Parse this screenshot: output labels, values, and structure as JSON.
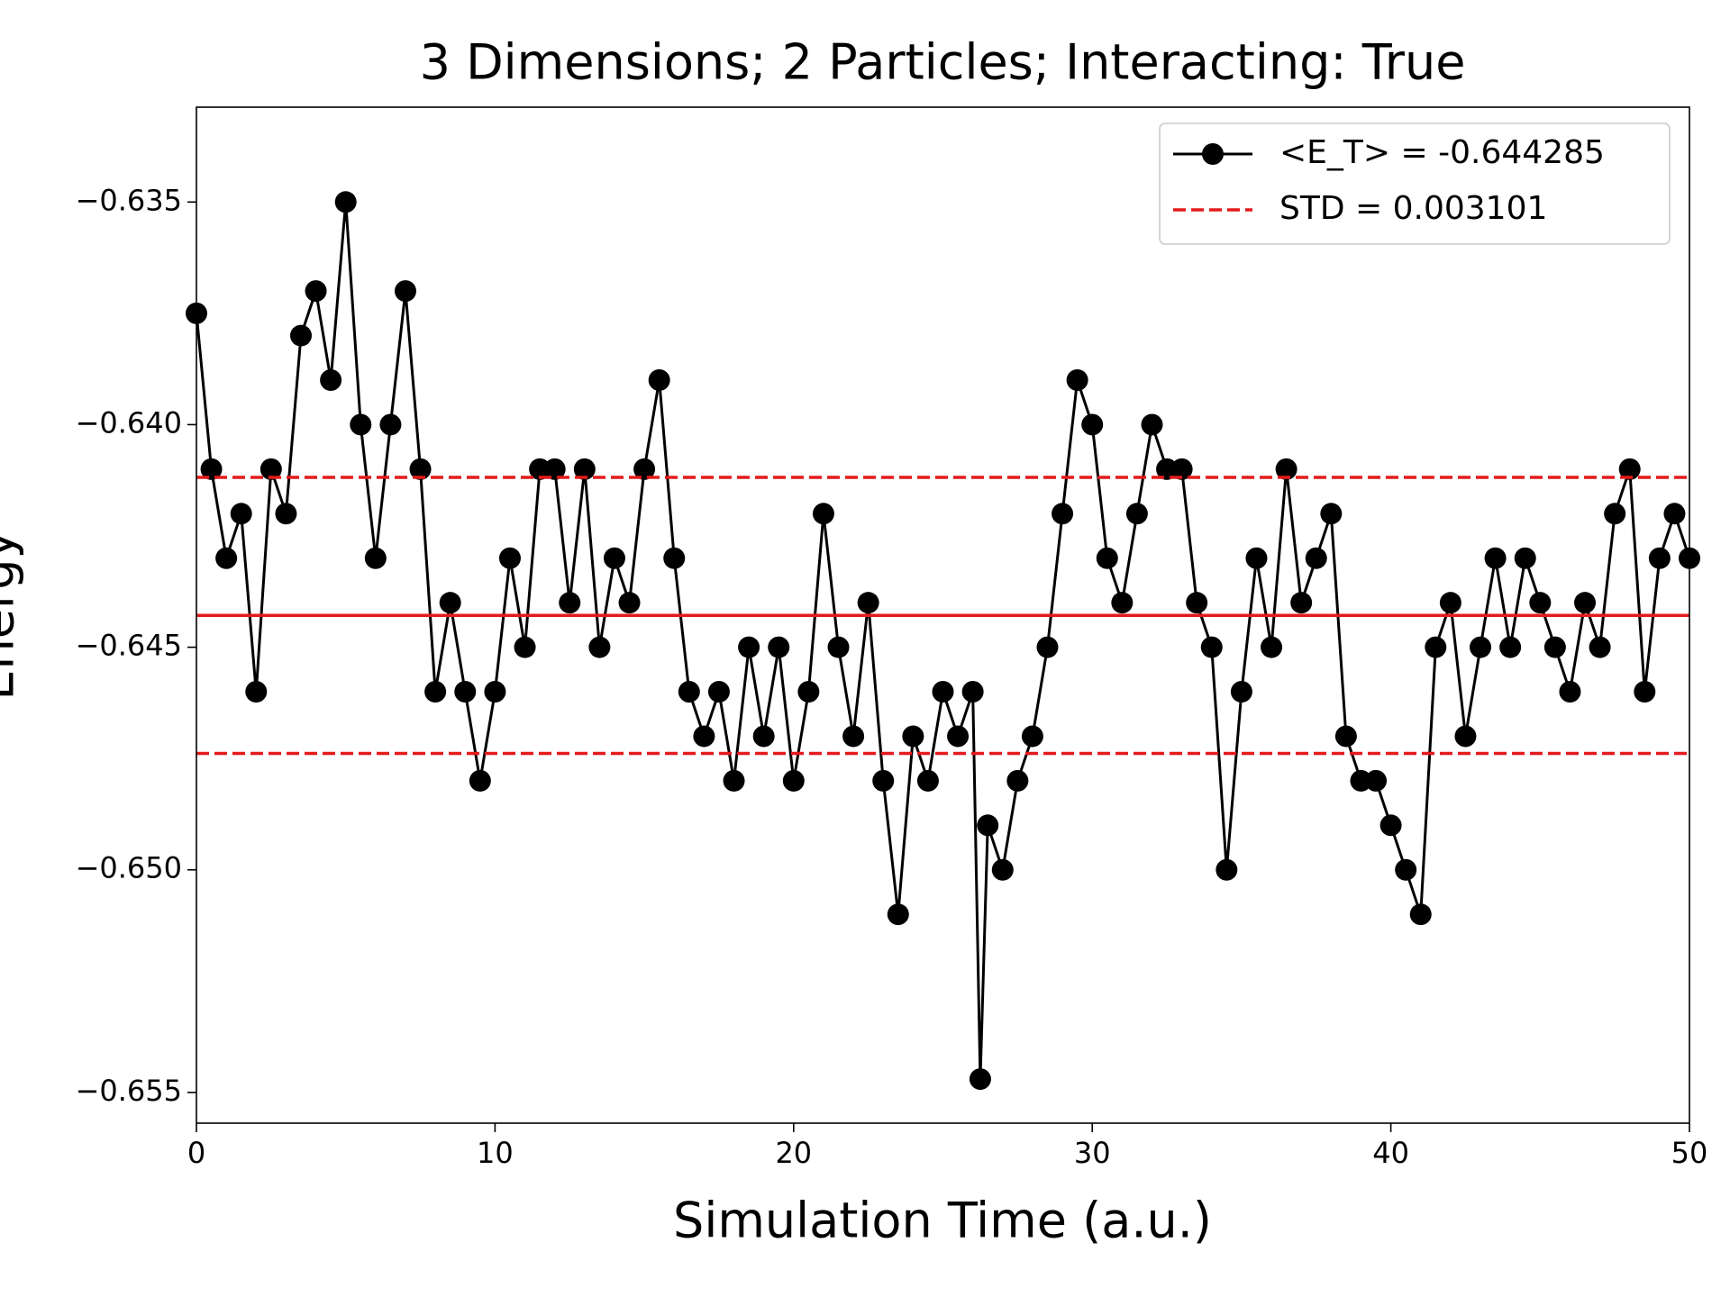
{
  "chart_data": {
    "type": "line",
    "title": "3 Dimensions; 2 Particles; Interacting: True",
    "x_label": "Simulation Time (a.u.)",
    "y_label": "Energy",
    "xlim": [
      0,
      50
    ],
    "xticks": [
      0,
      10,
      20,
      30,
      40,
      50
    ],
    "ylim": [
      -0.65569,
      -0.63287
    ],
    "yticks": [
      {
        "value": -0.635,
        "label": "−0.635"
      },
      {
        "value": -0.64,
        "label": "−0.640"
      },
      {
        "value": -0.645,
        "label": "−0.645"
      },
      {
        "value": -0.65,
        "label": "−0.650"
      },
      {
        "value": -0.655,
        "label": "−0.655"
      }
    ],
    "legend": "upper right",
    "series": [
      {
        "name": "<E_T> = -0.644285",
        "color": "#000000",
        "marker": "o",
        "x": [
          0,
          0.5,
          1,
          1.5,
          2,
          2.5,
          3,
          3.5,
          4,
          4.5,
          5,
          5.5,
          6,
          6.5,
          7,
          7.5,
          8,
          8.5,
          9,
          9.5,
          10,
          10.5,
          11,
          11.5,
          12,
          12.5,
          13,
          13.5,
          14,
          14.5,
          15,
          15.5,
          16,
          16.5,
          17,
          17.5,
          18,
          18.5,
          19,
          19.5,
          20,
          20.5,
          21,
          21.5,
          22,
          22.5,
          23,
          23.5,
          24,
          24.5,
          25,
          25.5,
          26,
          26.25,
          26.5,
          27,
          27.5,
          28,
          28.5,
          29,
          29.5,
          30,
          30.5,
          31,
          31.5,
          32,
          32.5,
          33,
          33.5,
          34,
          34.5,
          35,
          35.5,
          36,
          36.5,
          37,
          37.5,
          38,
          38.5,
          39,
          39.5,
          40,
          40.5,
          41,
          41.5,
          42,
          42.5,
          43,
          43.5,
          44,
          44.5,
          45,
          45.5,
          46,
          46.5,
          47,
          47.5,
          48,
          48.5,
          49,
          49.5,
          50
        ],
        "values": [
          -0.6375,
          -0.641,
          -0.643,
          -0.642,
          -0.646,
          -0.641,
          -0.642,
          -0.638,
          -0.637,
          -0.639,
          -0.635,
          -0.64,
          -0.643,
          -0.64,
          -0.637,
          -0.641,
          -0.646,
          -0.644,
          -0.646,
          -0.648,
          -0.646,
          -0.643,
          -0.645,
          -0.641,
          -0.641,
          -0.644,
          -0.641,
          -0.645,
          -0.643,
          -0.644,
          -0.641,
          -0.639,
          -0.643,
          -0.646,
          -0.647,
          -0.646,
          -0.648,
          -0.645,
          -0.647,
          -0.645,
          -0.648,
          -0.646,
          -0.642,
          -0.645,
          -0.647,
          -0.644,
          -0.648,
          -0.651,
          -0.647,
          -0.648,
          -0.646,
          -0.647,
          -0.646,
          -0.6547,
          -0.649,
          -0.65,
          -0.648,
          -0.647,
          -0.645,
          -0.642,
          -0.639,
          -0.64,
          -0.643,
          -0.644,
          -0.642,
          -0.64,
          -0.641,
          -0.641,
          -0.644,
          -0.645,
          -0.65,
          -0.646,
          -0.643,
          -0.645,
          -0.641,
          -0.644,
          -0.643,
          -0.642,
          -0.647,
          -0.648,
          -0.648,
          -0.649,
          -0.65,
          -0.651,
          -0.645,
          -0.644,
          -0.647,
          -0.645,
          -0.643,
          -0.645,
          -0.643,
          -0.644,
          -0.645,
          -0.646,
          -0.644,
          -0.645,
          -0.642,
          -0.641,
          -0.646,
          -0.643,
          -0.642,
          -0.643
        ]
      }
    ],
    "reference_lines": {
      "mean": -0.644285,
      "std": 0.003101,
      "name": "STD = 0.003101",
      "color": "#e41a1c"
    }
  }
}
